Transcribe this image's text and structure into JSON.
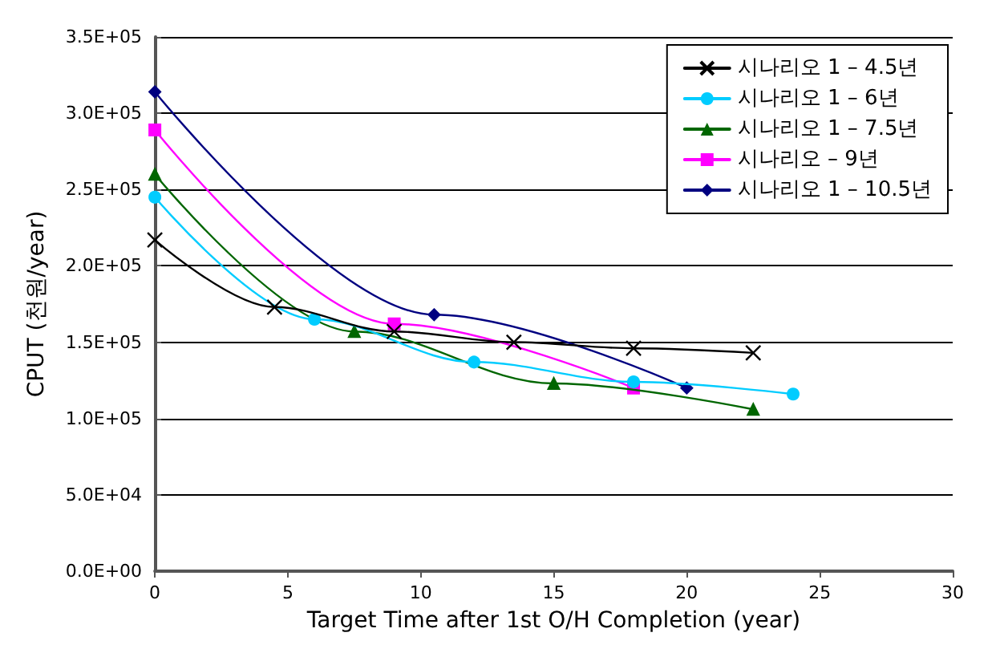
{
  "chart_data": {
    "type": "line",
    "xlabel": "Target Time after 1st O/H Completion (year)",
    "ylabel": "CPUT (천원/year)",
    "xlim": [
      0,
      30
    ],
    "xticks": [
      0,
      5,
      10,
      15,
      20,
      25,
      30
    ],
    "ylim": [
      0,
      350000
    ],
    "yticks": [
      {
        "value": 0,
        "label": "0.0E+00"
      },
      {
        "value": 50000,
        "label": "5.0E+04"
      },
      {
        "value": 100000,
        "label": "1.0E+05"
      },
      {
        "value": 150000,
        "label": "1.5E+05"
      },
      {
        "value": 200000,
        "label": "2.0E+05"
      },
      {
        "value": 250000,
        "label": "2.5E+05"
      },
      {
        "value": 300000,
        "label": "3.0E+05"
      },
      {
        "value": 350000,
        "label": "3.5E+05"
      }
    ],
    "grid": "y",
    "legend": "top right",
    "line_style": "solid",
    "series": [
      {
        "name": "시나리오 1 – 4.5년",
        "color": "#000000",
        "marker": "cross",
        "x": [
          0,
          4.5,
          9,
          13.5,
          18,
          22.5
        ],
        "values": [
          217000,
          173000,
          157000,
          150000,
          146000,
          143000
        ]
      },
      {
        "name": "시나리오 1 – 6년",
        "color": "#00ccff",
        "marker": "circle",
        "x": [
          0,
          6,
          12,
          18,
          24
        ],
        "values": [
          245000,
          165000,
          137000,
          124000,
          116000
        ]
      },
      {
        "name": "시나리오 1 – 7.5년",
        "color": "#006600",
        "marker": "triangle",
        "x": [
          0,
          7.5,
          15,
          22.5
        ],
        "values": [
          260000,
          157000,
          123000,
          106000
        ]
      },
      {
        "name": "시나리오 – 9년",
        "color": "#ff00ff",
        "marker": "square",
        "x": [
          0,
          9,
          18
        ],
        "values": [
          289000,
          162000,
          120000
        ]
      },
      {
        "name": "시나리오 1 – 10.5년",
        "color": "#000080",
        "marker": "diamond",
        "x": [
          0,
          10.5,
          20
        ],
        "values": [
          314000,
          168000,
          120000
        ]
      }
    ]
  }
}
